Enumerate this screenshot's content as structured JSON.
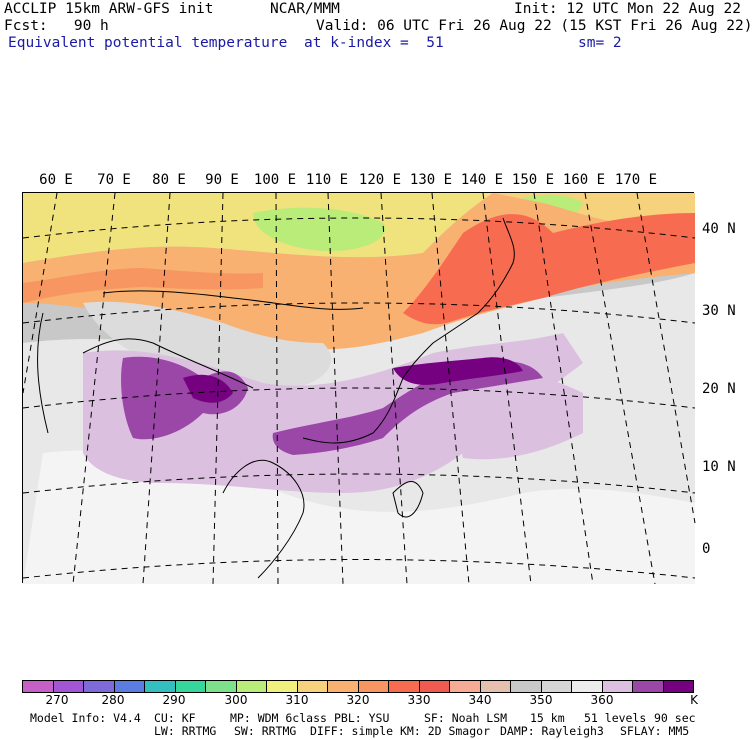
{
  "header": {
    "line1_left": "ACCLIP 15km ARW-GFS init",
    "line1_center": "NCAR/MMM",
    "line1_right": "Init: 12 UTC Mon 22 Aug 22",
    "line2_left": "Fcst:   90 h",
    "line2_right": "Valid: 06 UTC Fri 26 Aug 22 (15 KST Fri 26 Aug 22)",
    "field": "Equivalent potential temperature",
    "level": "at k-index =  51",
    "smooth": "sm= 2"
  },
  "map": {
    "lon_labels": [
      "60 E",
      "70 E",
      "80 E",
      "90 E",
      "100 E",
      "110 E",
      "120 E",
      "130 E",
      "140 E",
      "150 E",
      "160 E",
      "170 E"
    ],
    "lat_labels": [
      "40 N",
      "30 N",
      "20 N",
      "10 N",
      "0"
    ]
  },
  "colorbar": {
    "colors": [
      "#c65fc6",
      "#a256d6",
      "#7f6ad9",
      "#5b7de0",
      "#33bfc0",
      "#36d69c",
      "#7de08a",
      "#b9ec79",
      "#f0f07c",
      "#f6d27c",
      "#f8b170",
      "#f79660",
      "#f76b50",
      "#f05a50",
      "#f6ab94",
      "#e6c0ae",
      "#c8c8c8",
      "#d6d6d6",
      "#ececec",
      "#dcc0e0",
      "#9a47a8",
      "#750080"
    ],
    "ticks": [
      "270",
      "280",
      "290",
      "300",
      "310",
      "320",
      "330",
      "340",
      "350",
      "360"
    ],
    "unit": "K"
  },
  "footer": {
    "line1": [
      "Model Info: V4.4",
      "CU: KF",
      "MP: WDM 6class",
      "PBL: YSU",
      "SF: Noah LSM",
      "15 km",
      "51 levels",
      "90 sec"
    ],
    "line2": [
      "LW: RRTMG",
      "SW: RRTMG",
      "DIFF: simple",
      "KM: 2D Smagor",
      "DAMP: Rayleigh3",
      "SFLAY: MM5"
    ]
  }
}
